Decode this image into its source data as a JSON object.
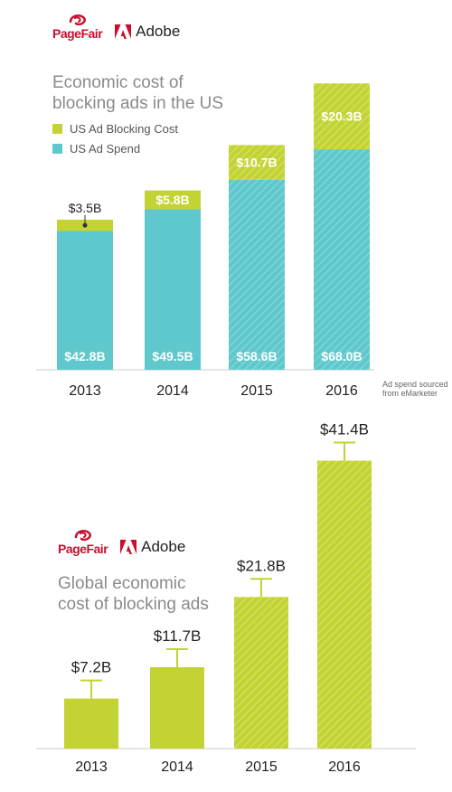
{
  "colors": {
    "ad_blocking_cost": "#c2d333",
    "ad_spend": "#5ec8cc",
    "brand_red": "#c8102e",
    "axis": "#cccccc",
    "title_gray": "#8a8a8a",
    "label_dark": "#222222"
  },
  "brands": {
    "pagefair": "PageFair",
    "adobe": "Adobe"
  },
  "chart1_meta": {
    "title": "Economic cost of\nblocking ads in the US",
    "legend": [
      {
        "label": "US Ad Blocking Cost",
        "color": "#c2d333"
      },
      {
        "label": "US Ad Spend",
        "color": "#5ec8cc"
      }
    ],
    "note": "Ad spend sourced\nfrom eMarketer"
  },
  "chart2_meta": {
    "title": "Global economic\ncost of blocking ads"
  },
  "chart_data": [
    {
      "type": "bar",
      "stacked": true,
      "title": "Economic cost of blocking ads in the US",
      "categories": [
        "2013",
        "2014",
        "2015",
        "2016"
      ],
      "series": [
        {
          "name": "US Ad Spend",
          "values": [
            42.8,
            49.5,
            58.6,
            68.0
          ],
          "labels": [
            "$42.8B",
            "$49.5B",
            "$58.6B",
            "$68.0B"
          ],
          "color": "#5ec8cc"
        },
        {
          "name": "US Ad Blocking Cost",
          "values": [
            3.5,
            5.8,
            10.7,
            20.3
          ],
          "labels": [
            "$3.5B",
            "$5.8B",
            "$10.7B",
            "$20.3B"
          ],
          "color": "#c2d333"
        }
      ],
      "projected": [
        false,
        false,
        true,
        true
      ],
      "ylim": [
        0,
        92
      ],
      "legend_position": "top-left",
      "grid": false
    },
    {
      "type": "bar",
      "title": "Global economic cost of blocking ads",
      "categories": [
        "2013",
        "2014",
        "2015",
        "2016"
      ],
      "values": [
        7.2,
        11.7,
        21.8,
        41.4
      ],
      "labels": [
        "$7.2B",
        "$11.7B",
        "$21.8B",
        "$41.4B"
      ],
      "error_bars": true,
      "projected": [
        false,
        false,
        true,
        true
      ],
      "color": "#c2d333",
      "ylim": [
        0,
        52
      ],
      "grid": false
    }
  ]
}
